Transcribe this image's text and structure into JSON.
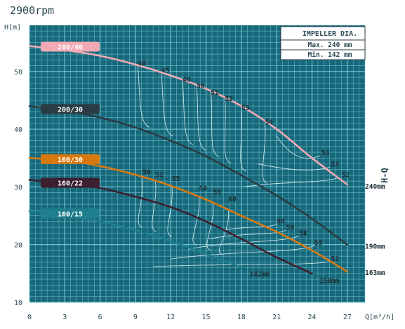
{
  "chart_data": {
    "type": "line",
    "title": "2900rpm",
    "ylabel": "H[m]",
    "xlabel": "Q[m³/h]",
    "side_label": "H-Q",
    "xlim": [
      0,
      28.5
    ],
    "ylim": [
      10,
      58
    ],
    "x_ticks": [
      0,
      3,
      6,
      9,
      12,
      15,
      18,
      21,
      24,
      27
    ],
    "y_ticks": [
      10,
      20,
      30,
      40,
      50
    ],
    "grid": true,
    "colors": {
      "background": "#17687a",
      "grid": "#7fd3e0",
      "text": "#2d4a55",
      "pink": "#f2a9b4",
      "dark": "#2b3c45",
      "orange": "#d8790f",
      "plum": "#3d1f2e",
      "teal": "#1f7f8c"
    },
    "impeller_box": {
      "title": "IMPELLER DIA.",
      "max": "Max. 240 mm",
      "min": "Min. 142 mm"
    },
    "series": [
      {
        "name": "200/40",
        "color": "pink",
        "label_y": 54.3,
        "end_label": "240mm",
        "end_label_x": 28.5,
        "end_label_y": 30.2,
        "x": [
          0,
          3,
          6,
          9,
          12,
          15,
          18,
          21,
          24,
          27
        ],
        "y": [
          54.4,
          53.7,
          52.7,
          51.2,
          49.3,
          47.0,
          44.0,
          40.0,
          35.0,
          30.4
        ]
      },
      {
        "name": "200/30",
        "color": "dark",
        "label_y": 43.5,
        "end_label": "190mm",
        "end_label_x": 28.5,
        "end_label_y": 19.8,
        "x": [
          0,
          3,
          6,
          9,
          12,
          15,
          18,
          21,
          24,
          27
        ],
        "y": [
          44.0,
          43.2,
          42.0,
          40.3,
          38.0,
          35.3,
          32.0,
          28.5,
          24.5,
          20.0
        ]
      },
      {
        "name": "160/30",
        "color": "orange",
        "label_y": 34.8,
        "end_label": "163mm",
        "end_label_x": 28.5,
        "end_label_y": 15.2,
        "x": [
          0,
          3,
          6,
          9,
          12,
          15,
          18,
          21,
          24,
          27
        ],
        "y": [
          35.0,
          34.6,
          33.6,
          32.1,
          30.2,
          27.8,
          25.0,
          22.2,
          19.0,
          15.3
        ]
      },
      {
        "name": "160/22",
        "color": "plum",
        "label_y": 30.7,
        "end_label": "158mm",
        "end_label_x": 24.6,
        "end_label_y": 13.8,
        "x": [
          0,
          3,
          6,
          9,
          12,
          15,
          18,
          21,
          24
        ],
        "y": [
          31.2,
          30.6,
          29.8,
          28.3,
          26.5,
          24.0,
          21.0,
          17.8,
          15.0
        ]
      },
      {
        "name": "160/15",
        "color": "teal",
        "label_y": 25.4,
        "end_label": "142mm",
        "end_label_x": 18.7,
        "end_label_y": 15.0,
        "x": [
          0,
          3,
          6,
          9,
          12,
          15,
          18
        ],
        "y": [
          25.8,
          25.0,
          24.0,
          22.5,
          20.6,
          18.4,
          16.0
        ]
      }
    ],
    "efficiency_labels": [
      {
        "text": "40",
        "x": 9.2,
        "y": 51.0
      },
      {
        "text": "45",
        "x": 11.2,
        "y": 49.8
      },
      {
        "text": "48",
        "x": 13.0,
        "y": 48.2
      },
      {
        "text": "50",
        "x": 14.2,
        "y": 47.1
      },
      {
        "text": "51",
        "x": 15.4,
        "y": 46.0
      },
      {
        "text": "52",
        "x": 16.6,
        "y": 44.9
      },
      {
        "text": "53",
        "x": 18.0,
        "y": 43.3
      },
      {
        "text": "54",
        "x": 20.0,
        "y": 40.8
      },
      {
        "text": "54",
        "x": 24.8,
        "y": 35.5
      },
      {
        "text": "53",
        "x": 25.6,
        "y": 33.5
      },
      {
        "text": "52",
        "x": 26.5,
        "y": 31.7
      },
      {
        "text": "50",
        "x": 9.6,
        "y": 32.2
      },
      {
        "text": "52",
        "x": 10.7,
        "y": 31.7
      },
      {
        "text": "55",
        "x": 12.1,
        "y": 31.0
      },
      {
        "text": "58",
        "x": 14.4,
        "y": 29.4
      },
      {
        "text": "59",
        "x": 15.6,
        "y": 28.7
      },
      {
        "text": "60",
        "x": 16.9,
        "y": 27.5
      },
      {
        "text": "60",
        "x": 21.0,
        "y": 23.7
      },
      {
        "text": "59",
        "x": 21.8,
        "y": 22.6
      },
      {
        "text": "58",
        "x": 22.9,
        "y": 21.6
      },
      {
        "text": "55",
        "x": 24.2,
        "y": 19.9
      },
      {
        "text": "52",
        "x": 25.6,
        "y": 17.2
      }
    ]
  }
}
